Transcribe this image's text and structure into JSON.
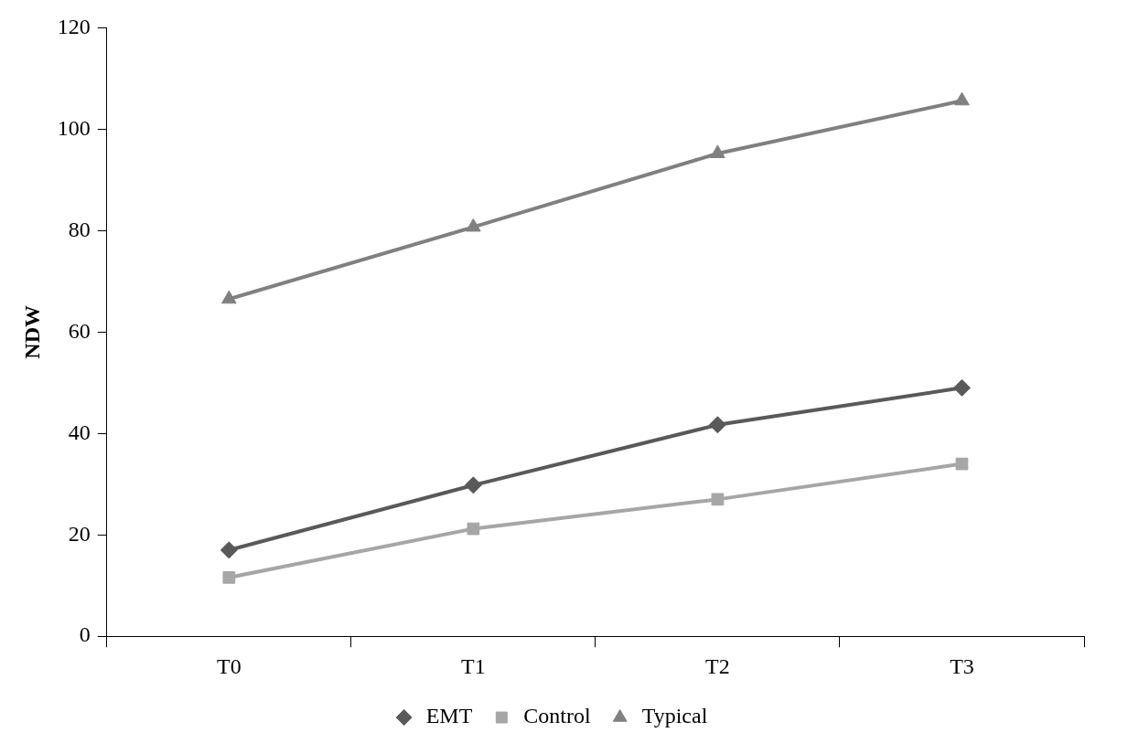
{
  "chart_data": {
    "type": "line",
    "ylabel": "NDW",
    "categories": [
      "T0",
      "T1",
      "T2",
      "T3"
    ],
    "series": [
      {
        "name": "EMT",
        "color": "#595959",
        "marker": "diamond",
        "values": [
          17,
          29.8,
          41.7,
          49
        ]
      },
      {
        "name": "Control",
        "color": "#a6a6a6",
        "marker": "square",
        "values": [
          11.6,
          21.2,
          27,
          34
        ]
      },
      {
        "name": "Typical",
        "color": "#808080",
        "marker": "triangle",
        "values": [
          66.5,
          80.7,
          95.2,
          105.6
        ]
      }
    ],
    "ylim": [
      0,
      120
    ],
    "yticks": [
      0,
      20,
      40,
      60,
      80,
      100,
      120
    ],
    "grid": false,
    "legend": "bottom",
    "line_style": "solid"
  }
}
